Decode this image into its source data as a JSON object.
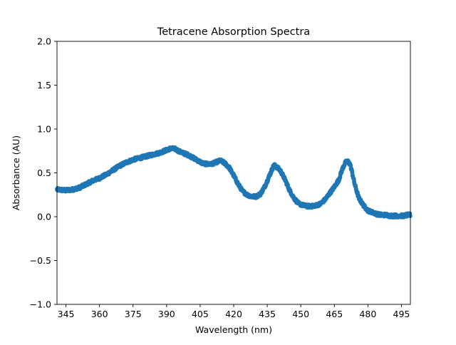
{
  "chart_data": {
    "type": "scatter",
    "title": "Tetracene Absorption Spectra",
    "xlabel": "Wavelength (nm)",
    "ylabel": "Absorbance (AU)",
    "xlim": [
      341,
      499
    ],
    "ylim": [
      -1.0,
      2.0
    ],
    "xticks": [
      345,
      360,
      375,
      390,
      405,
      420,
      435,
      450,
      465,
      480,
      495
    ],
    "yticks": [
      -1.0,
      -0.5,
      0.0,
      0.5,
      1.0,
      1.5,
      2.0
    ],
    "ytick_labels": [
      "−1.0",
      "−0.5",
      "0.0",
      "0.5",
      "1.0",
      "1.5",
      "2.0"
    ],
    "grid": false,
    "marker_color": "#1f77b4",
    "series": [
      {
        "x": [
          341,
          345,
          348,
          351,
          354,
          357,
          360,
          363,
          366,
          369,
          372,
          375,
          378,
          381,
          384,
          387,
          390,
          392,
          394,
          396,
          398,
          400,
          402,
          404,
          406,
          408,
          410,
          412,
          414,
          416,
          418,
          420,
          422,
          424,
          426,
          428,
          430,
          432,
          434,
          436,
          437,
          438,
          439,
          440,
          441,
          443,
          445,
          447,
          449,
          451,
          453,
          455,
          457,
          459,
          461,
          463,
          465,
          467,
          468,
          469,
          470,
          471,
          472,
          473,
          474,
          475,
          476,
          478,
          480,
          482,
          484,
          486,
          488,
          490,
          492,
          494,
          496,
          498,
          499
        ],
        "y": [
          0.31,
          0.3,
          0.31,
          0.33,
          0.37,
          0.41,
          0.44,
          0.48,
          0.53,
          0.58,
          0.62,
          0.65,
          0.67,
          0.69,
          0.71,
          0.73,
          0.76,
          0.78,
          0.77,
          0.74,
          0.72,
          0.7,
          0.67,
          0.64,
          0.61,
          0.6,
          0.6,
          0.62,
          0.64,
          0.61,
          0.56,
          0.47,
          0.37,
          0.29,
          0.25,
          0.23,
          0.23,
          0.26,
          0.35,
          0.47,
          0.53,
          0.59,
          0.57,
          0.55,
          0.52,
          0.42,
          0.3,
          0.21,
          0.15,
          0.13,
          0.12,
          0.12,
          0.13,
          0.15,
          0.2,
          0.27,
          0.34,
          0.42,
          0.5,
          0.57,
          0.62,
          0.63,
          0.6,
          0.5,
          0.38,
          0.29,
          0.21,
          0.13,
          0.07,
          0.05,
          0.03,
          0.02,
          0.02,
          0.01,
          0.01,
          0.01,
          0.01,
          0.02,
          0.02
        ]
      }
    ]
  }
}
